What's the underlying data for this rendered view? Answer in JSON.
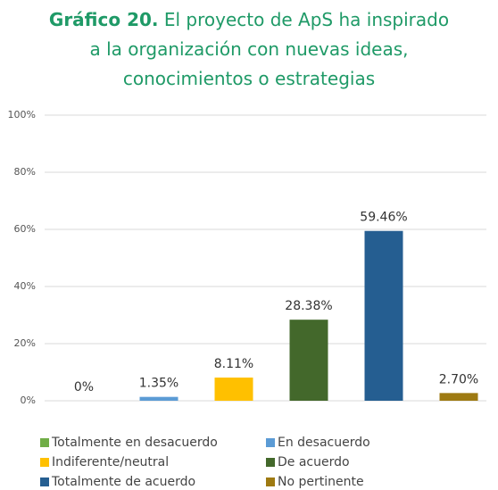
{
  "chart_data": {
    "type": "bar",
    "title_label": "Gráfico 20.",
    "title": "El proyecto de ApS ha inspirado a la organización con nuevas ideas, conocimientos o estrategias",
    "categories": [
      "Totalmente en desacuerdo",
      "En desacuerdo",
      "Indiferente/neutral",
      "De acuerdo",
      "Totalmente de acuerdo",
      "No pertinente"
    ],
    "values": [
      0,
      1.35,
      8.11,
      28.38,
      59.46,
      2.7
    ],
    "value_labels": [
      "0%",
      "1.35%",
      "8.11%",
      "28.38%",
      "59.46%",
      "2.70%"
    ],
    "colors": [
      "#70ad47",
      "#5b9bd5",
      "#ffc000",
      "#43682b",
      "#255e91",
      "#9e7a12"
    ],
    "ylim": [
      0,
      100
    ],
    "yticks": [
      {
        "value": 0,
        "label": "0%"
      },
      {
        "value": 20,
        "label": "20%"
      },
      {
        "value": 40,
        "label": "40%"
      },
      {
        "value": 60,
        "label": "60%"
      },
      {
        "value": 80,
        "label": "80%"
      },
      {
        "value": 100,
        "label": "100%"
      }
    ],
    "grid": true,
    "legend": "bottom"
  }
}
